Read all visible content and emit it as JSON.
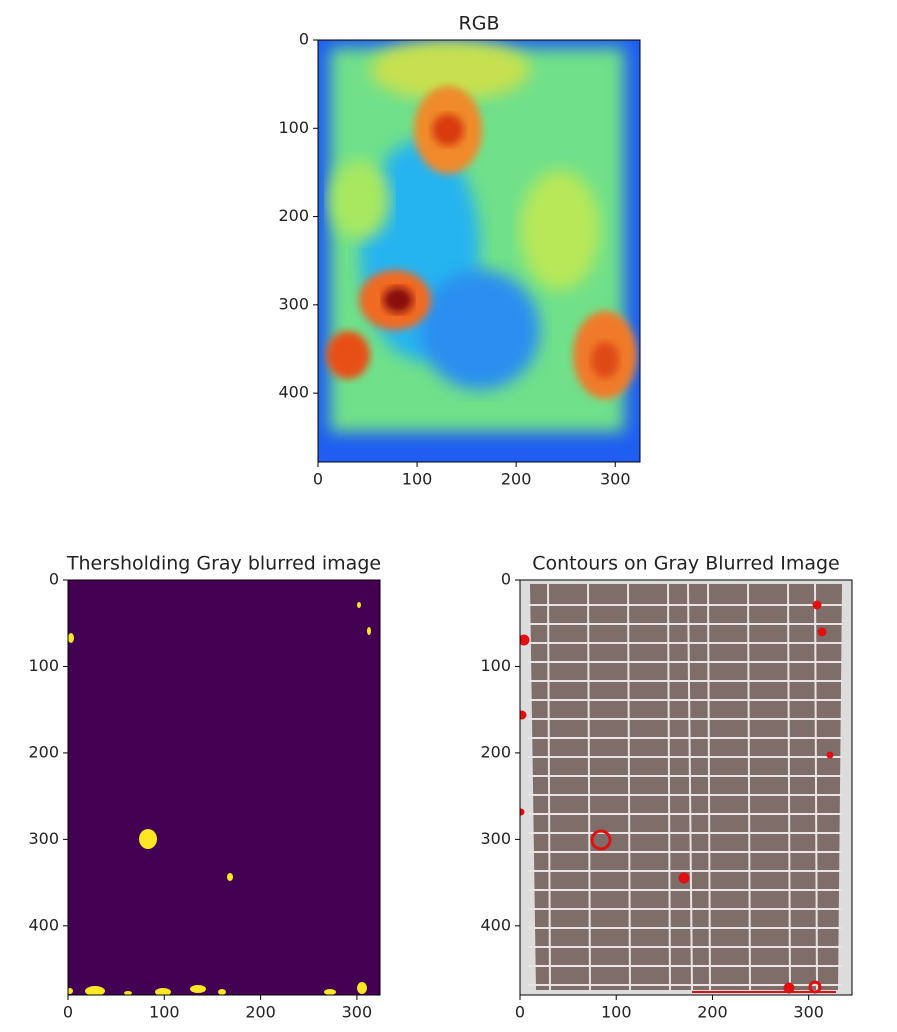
{
  "chart_data": [
    {
      "type": "image",
      "title": "RGB",
      "xlim": [
        0,
        325
      ],
      "ylim": [
        478,
        0
      ],
      "xticks": [
        0,
        100,
        200,
        300
      ],
      "yticks": [
        0,
        100,
        200,
        300,
        400
      ]
    },
    {
      "type": "image",
      "title": "Thersholding Gray blurred image",
      "xlim": [
        0,
        324
      ],
      "ylim": [
        480,
        0
      ],
      "xticks": [
        0,
        100,
        200,
        300
      ],
      "yticks": [
        0,
        100,
        200,
        300,
        400
      ]
    },
    {
      "type": "image",
      "title": "Contours on Gray Blurred Image",
      "xlim": [
        0,
        345
      ],
      "ylim": [
        480,
        0
      ],
      "xticks": [
        0,
        100,
        200,
        300
      ],
      "yticks": [
        0,
        100,
        200,
        300,
        400
      ]
    }
  ]
}
